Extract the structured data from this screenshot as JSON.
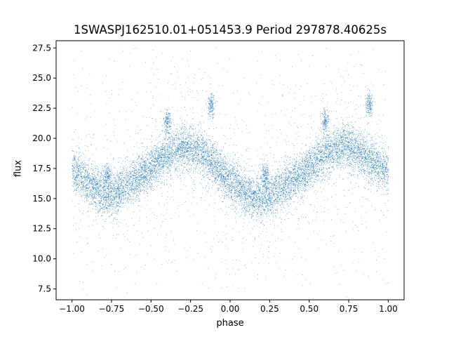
{
  "chart_data": {
    "type": "scatter",
    "title": "1SWASPJ162510.01+051453.9 Period 297878.40625s",
    "xlabel": "phase",
    "ylabel": "flux",
    "xlim": [
      -1.1,
      1.1
    ],
    "ylim": [
      6.6,
      28.1
    ],
    "x_ticks": [
      -1.0,
      -0.75,
      -0.5,
      -0.25,
      0.0,
      0.25,
      0.5,
      0.75,
      1.0
    ],
    "x_tick_labels": [
      "−1.00",
      "−0.75",
      "−0.50",
      "−0.25",
      "0.00",
      "0.25",
      "0.50",
      "0.75",
      "1.00"
    ],
    "y_ticks": [
      7.5,
      10.0,
      12.5,
      15.0,
      17.5,
      20.0,
      22.5,
      25.0,
      27.5
    ],
    "y_tick_labels": [
      "7.5",
      "10.0",
      "12.5",
      "15.0",
      "17.5",
      "20.0",
      "22.5",
      "25.0",
      "27.5"
    ],
    "marker_color": "#1f77b4",
    "grid": false,
    "series": [
      {
        "name": "",
        "phase_range": [
          -1.0,
          1.0
        ],
        "folded_period_in_phase": 1.0,
        "mean_profile": {
          "x": [
            -1.0,
            -0.9,
            -0.8,
            -0.75,
            -0.7,
            -0.6,
            -0.5,
            -0.4,
            -0.3,
            -0.25,
            -0.2,
            -0.1,
            0.0,
            0.1,
            0.2,
            0.25,
            0.3,
            0.4,
            0.5,
            0.6,
            0.7,
            0.75,
            0.8,
            0.9,
            1.0
          ],
          "y": [
            17.5,
            16.3,
            15.3,
            15.3,
            15.7,
            16.6,
            17.6,
            18.6,
            19.3,
            19.3,
            19.0,
            17.8,
            16.5,
            15.4,
            15.0,
            15.3,
            15.7,
            16.6,
            17.6,
            18.6,
            19.3,
            19.3,
            19.0,
            18.0,
            17.3
          ]
        },
        "scatter_spread": 1.1,
        "clumps": [
          {
            "x": -0.4,
            "y": 21.4
          },
          {
            "x": 0.6,
            "y": 21.4
          },
          {
            "x": -0.12,
            "y": 22.7
          },
          {
            "x": 0.88,
            "y": 22.7
          },
          {
            "x": -0.78,
            "y": 17.0
          },
          {
            "x": 0.22,
            "y": 17.0
          }
        ]
      }
    ]
  }
}
